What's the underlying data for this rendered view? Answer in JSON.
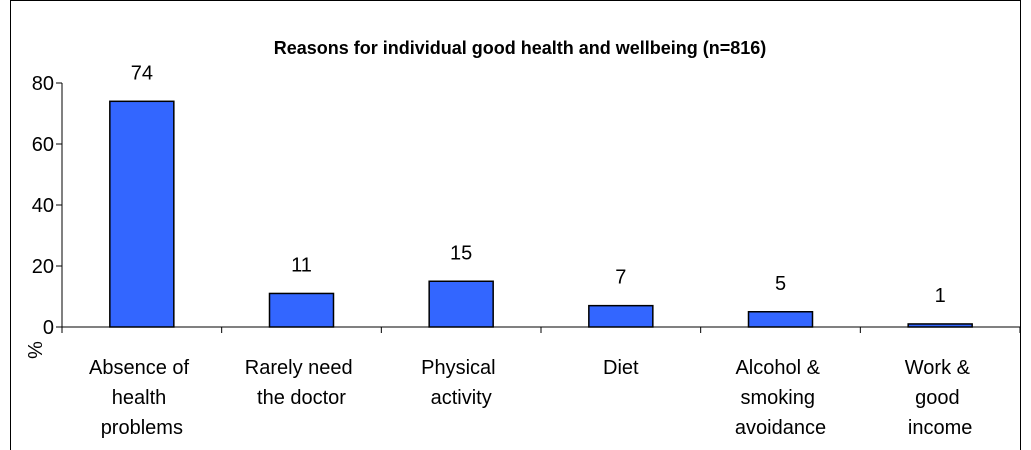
{
  "chart_data": {
    "type": "bar",
    "title": "Reasons for individual good health and wellbeing (n=816)",
    "y_label": "%",
    "categories": [
      "Absence of\nhealth\nproblems",
      "Rarely need\nthe doctor",
      "Physical\nactivity",
      "Diet",
      "Alcohol &\nsmoking\navoidance",
      "Work &\ngood\nincome"
    ],
    "values": [
      74,
      11,
      15,
      7,
      5,
      1
    ],
    "color": "#3366ff",
    "ylim": [
      0,
      80
    ],
    "yticks": [
      0,
      20,
      40,
      60,
      80
    ],
    "grid": false
  }
}
